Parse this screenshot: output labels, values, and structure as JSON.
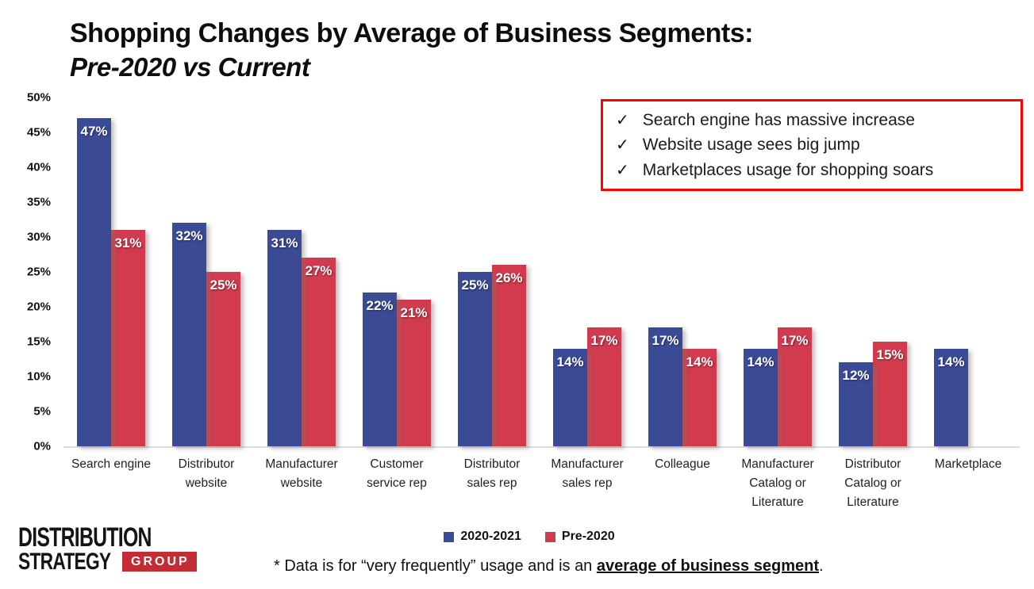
{
  "title": {
    "line1": "Shopping Changes by Average of Business Segments:",
    "line2": "Pre-2020 vs Current"
  },
  "callout": {
    "check": "✓",
    "items": [
      "Search engine has massive increase",
      "Website usage sees big jump",
      "Marketplaces usage for shopping soars"
    ],
    "border_color": "#ff0000"
  },
  "chart_data": {
    "type": "bar",
    "categories": [
      "Search engine",
      "Distributor website",
      "Manufacturer website",
      "Customer service rep",
      "Distributor sales rep",
      "Manufacturer sales rep",
      "Colleague",
      "Manufacturer Catalog or Literature",
      "Distributor Catalog or Literature",
      "Marketplace"
    ],
    "series": [
      {
        "name": "2020-2021",
        "color": "#3a4a94",
        "values": [
          47,
          32,
          31,
          22,
          25,
          14,
          17,
          14,
          12,
          14
        ]
      },
      {
        "name": "Pre-2020",
        "color": "#d23a4e",
        "values": [
          31,
          25,
          27,
          21,
          26,
          17,
          14,
          17,
          15,
          null
        ]
      }
    ],
    "value_label_suffix": "%",
    "y_ticks": [
      "0%",
      "5%",
      "10%",
      "15%",
      "20%",
      "25%",
      "30%",
      "35%",
      "40%",
      "45%",
      "50%"
    ],
    "ylim": [
      0,
      50
    ],
    "grid": false,
    "legend_position": "bottom"
  },
  "legend": [
    {
      "label": "2020-2021",
      "color": "#3a4a94"
    },
    {
      "label": "Pre-2020",
      "color": "#d23a4e"
    }
  ],
  "footnote": {
    "prefix": "* Data is for “very frequently” usage and is an ",
    "emphasis": "average of business segment",
    "suffix": "."
  },
  "logo": {
    "line1": "DISTRIBUTION",
    "line2": "STRATEGY",
    "badge": "GROUP",
    "badge_color": "#c52b35"
  }
}
